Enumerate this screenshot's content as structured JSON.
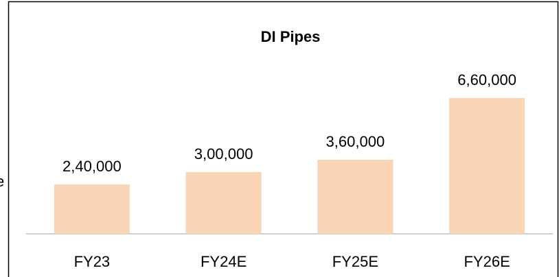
{
  "chart_data": {
    "type": "bar",
    "title": "DI Pipes",
    "categories": [
      "FY23",
      "FY24E",
      "FY25E",
      "FY26E"
    ],
    "values": [
      240000,
      300000,
      360000,
      660000
    ],
    "value_labels": [
      "2,40,000",
      "3,00,000",
      "3,60,000",
      "6,60,000"
    ],
    "color": "#f9d4b5",
    "annotation": "e"
  }
}
